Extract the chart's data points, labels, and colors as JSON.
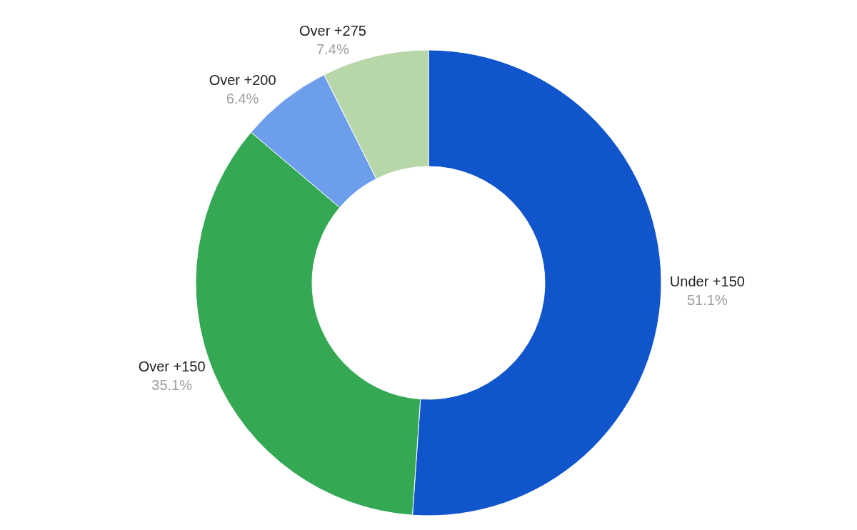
{
  "chart_data": {
    "type": "donut",
    "categories": [
      "Under +150",
      "Over +150",
      "Over +200",
      "Over +275"
    ],
    "values": [
      51.1,
      35.1,
      6.4,
      7.4
    ],
    "value_labels": [
      "51.1%",
      "35.1%",
      "6.4%",
      "7.4%"
    ],
    "colors": [
      "#1155cc",
      "#34a853",
      "#6d9eeb",
      "#b7d7a8"
    ],
    "legend": false
  }
}
